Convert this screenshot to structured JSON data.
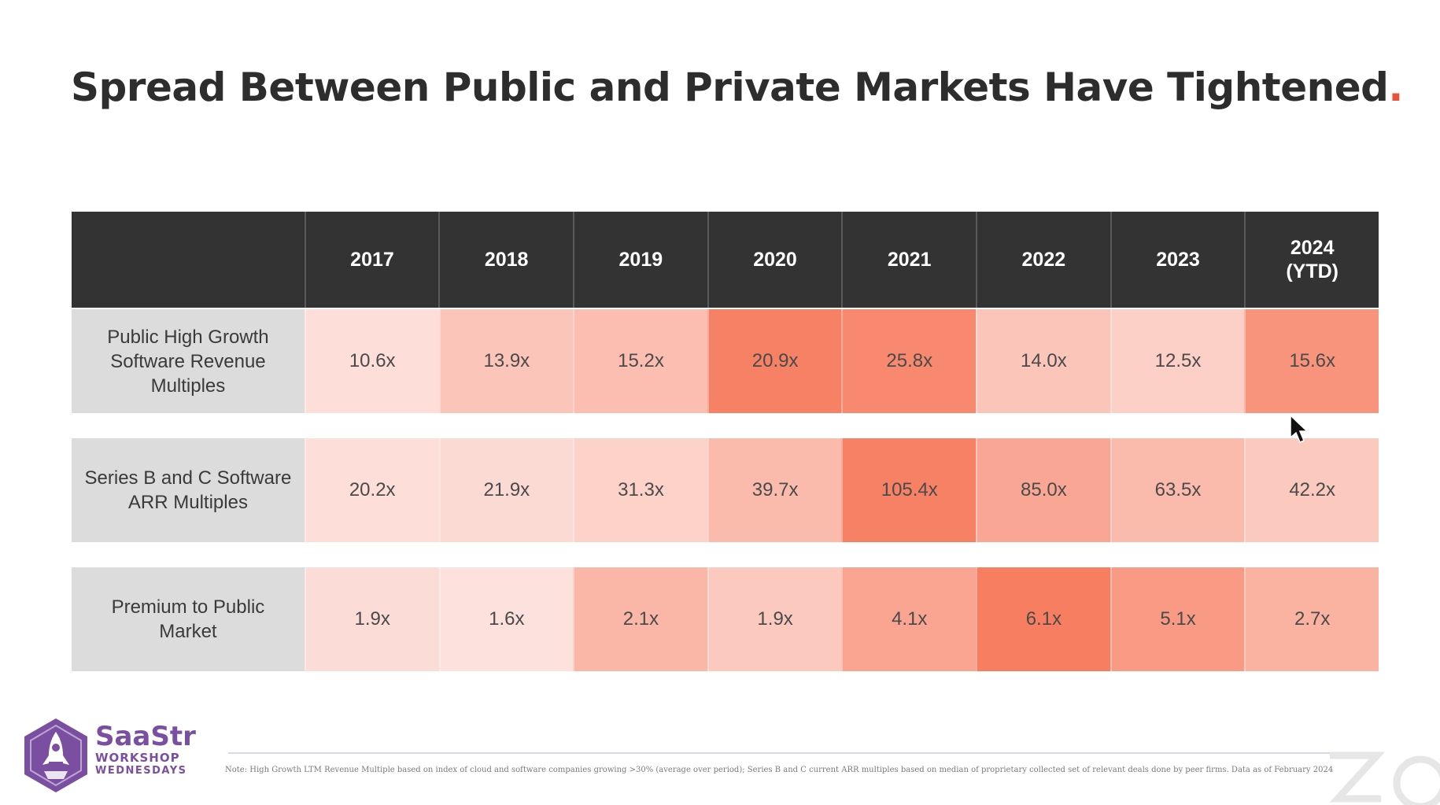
{
  "slide": {
    "title": "Spread Between Public and Private Markets Have Tightened",
    "title_punct": ".",
    "note": "Note: High Growth LTM Revenue Multiple based on index of cloud and software companies growing >30% (average over period); Series B and C current ARR multiples based on median of proprietary collected set of relevant deals done by peer firms. Data as of February 2024",
    "brand": {
      "name": "SaaStr",
      "line2": "WORKSHOP",
      "line3": "WEDNESDAYS"
    }
  },
  "colors": {
    "header_bg": "#333333",
    "label_bg": "#dcdcdc",
    "accent": "#e8533a",
    "brand": "#7a4fa2",
    "heat_low": "#fde7e4",
    "heat_high": "#f77c5e"
  },
  "chart_data": {
    "type": "heatmap",
    "title": "Spread Between Public and Private Markets Have Tightened",
    "columns": [
      "2017",
      "2018",
      "2019",
      "2020",
      "2021",
      "2022",
      "2023",
      "2024\n(YTD)"
    ],
    "rows": [
      {
        "label": "Public High Growth Software Revenue Multiples",
        "labels": [
          "10.6x",
          "13.9x",
          "15.2x",
          "20.9x",
          "25.8x",
          "14.0x",
          "12.5x",
          "15.6x"
        ],
        "values": [
          10.6,
          13.9,
          15.2,
          20.9,
          25.8,
          14.0,
          12.5,
          15.6
        ],
        "intensity": [
          0.08,
          0.32,
          0.38,
          0.95,
          0.88,
          0.32,
          0.22,
          0.78
        ]
      },
      {
        "label": "Series B and C Software ARR Multiples",
        "labels": [
          "20.2x",
          "21.9x",
          "31.3x",
          "39.7x",
          "105.4x",
          "85.0x",
          "63.5x",
          "42.2x"
        ],
        "values": [
          20.2,
          21.9,
          31.3,
          39.7,
          105.4,
          85.0,
          63.5,
          42.2
        ],
        "intensity": [
          0.08,
          0.12,
          0.2,
          0.42,
          0.95,
          0.6,
          0.42,
          0.28
        ]
      },
      {
        "label": "Premium to Public Market",
        "labels": [
          "1.9x",
          "1.6x",
          "2.1x",
          "1.9x",
          "4.1x",
          "6.1x",
          "5.1x",
          "2.7x"
        ],
        "values": [
          1.9,
          1.6,
          2.1,
          1.9,
          4.1,
          6.1,
          5.1,
          2.7
        ],
        "intensity": [
          0.1,
          0.06,
          0.45,
          0.28,
          0.62,
          0.98,
          0.72,
          0.5
        ]
      }
    ]
  }
}
